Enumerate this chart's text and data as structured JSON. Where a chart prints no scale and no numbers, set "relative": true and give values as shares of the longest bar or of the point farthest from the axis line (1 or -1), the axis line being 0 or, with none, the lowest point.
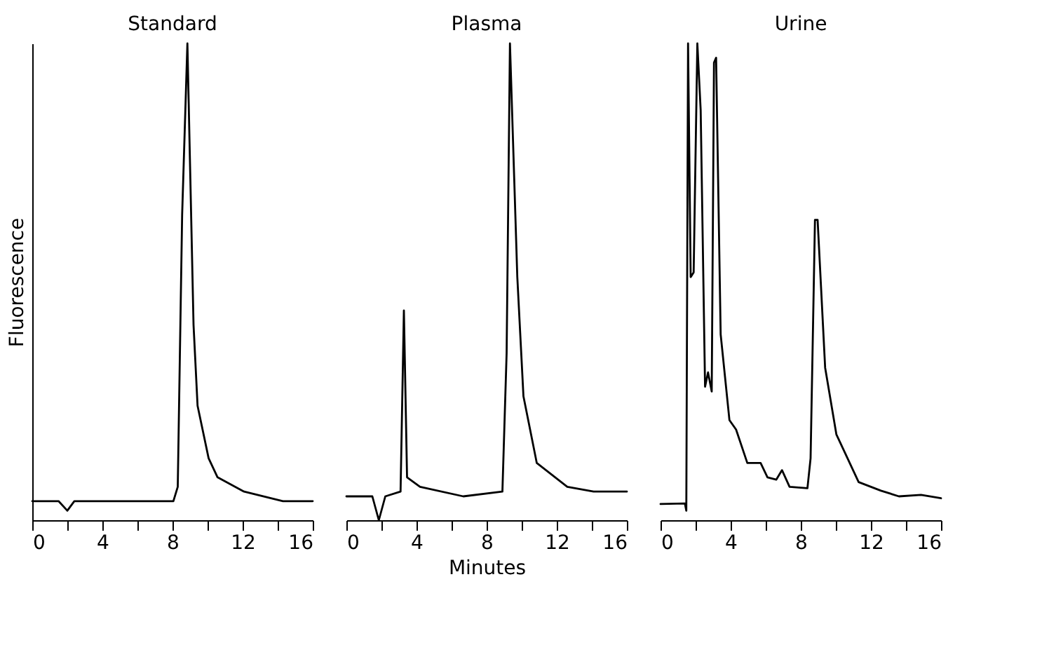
{
  "chart_data": [
    {
      "type": "line",
      "title": "Standard",
      "ylabel": "Fluorescence",
      "relative": true,
      "tick_labels": "x",
      "xlim": [
        0,
        16
      ],
      "xticks": [
        0,
        {
          "value": 2,
          "label": null
        },
        4,
        {
          "value": 6,
          "label": null
        },
        8,
        {
          "value": 10,
          "label": null
        },
        12,
        {
          "value": 14,
          "label": null
        },
        16
      ],
      "series": [
        {
          "color": "#000000",
          "x": [
            0,
            1.5,
            2.0,
            2.4,
            4,
            8.05,
            8.3,
            8.55,
            8.85,
            9.2,
            9.43,
            10.06,
            10.57,
            12.08,
            14.3,
            16
          ],
          "values": [
            0.04,
            0.04,
            0.02,
            0.04,
            0.04,
            0.04,
            0.07,
            0.64,
            1.0,
            0.41,
            0.24,
            0.13,
            0.09,
            0.06,
            0.04,
            0.04
          ]
        }
      ]
    },
    {
      "type": "line",
      "title": "Plasma",
      "xlabel": "Minutes",
      "relative": true,
      "tick_labels": "x",
      "xlim": [
        0,
        16
      ],
      "xticks": [
        0,
        {
          "value": 2,
          "label": null
        },
        4,
        {
          "value": 6,
          "label": null
        },
        8,
        {
          "value": 10,
          "label": null
        },
        12,
        {
          "value": 14,
          "label": null
        },
        16
      ],
      "series": [
        {
          "color": "#000000",
          "x": [
            0,
            1.48,
            1.85,
            2.22,
            3.09,
            3.28,
            3.46,
            4.2,
            6.67,
            8.9,
            9.14,
            9.33,
            9.75,
            10.1,
            10.86,
            12.6,
            14.1,
            16
          ],
          "values": [
            0.05,
            0.05,
            0.0,
            0.05,
            0.06,
            0.44,
            0.09,
            0.07,
            0.05,
            0.06,
            0.35,
            1.0,
            0.51,
            0.26,
            0.12,
            0.07,
            0.06,
            0.06
          ]
        }
      ]
    },
    {
      "type": "line",
      "title": "Urine",
      "relative": true,
      "tick_labels": "x",
      "xlim": [
        0,
        16
      ],
      "xticks": [
        0,
        {
          "value": 2,
          "label": null
        },
        4,
        {
          "value": 6,
          "label": null
        },
        8,
        {
          "value": 10,
          "label": null
        },
        12,
        {
          "value": 14,
          "label": null
        },
        16
      ],
      "series": [
        {
          "color": "#000000",
          "x": [
            0,
            1.39,
            1.47,
            1.57,
            1.72,
            1.89,
            2.1,
            2.29,
            2.54,
            2.71,
            2.92,
            3.05,
            3.17,
            3.43,
            3.93,
            4.31,
            4.95,
            5.71,
            6.1,
            6.6,
            6.93,
            7.36,
            8.38,
            8.56,
            8.81,
            8.96,
            9.39,
            10.03,
            10.54,
            11.3,
            12.57,
            13.6,
            14.86,
            16
          ],
          "values": [
            0.034,
            0.035,
            0.02,
            1.0,
            0.51,
            0.52,
            1.0,
            0.86,
            0.28,
            0.31,
            0.27,
            0.96,
            0.97,
            0.39,
            0.21,
            0.19,
            0.12,
            0.12,
            0.09,
            0.085,
            0.105,
            0.07,
            0.067,
            0.13,
            0.63,
            0.63,
            0.32,
            0.18,
            0.14,
            0.08,
            0.062,
            0.05,
            0.053,
            0.046
          ]
        }
      ]
    }
  ]
}
